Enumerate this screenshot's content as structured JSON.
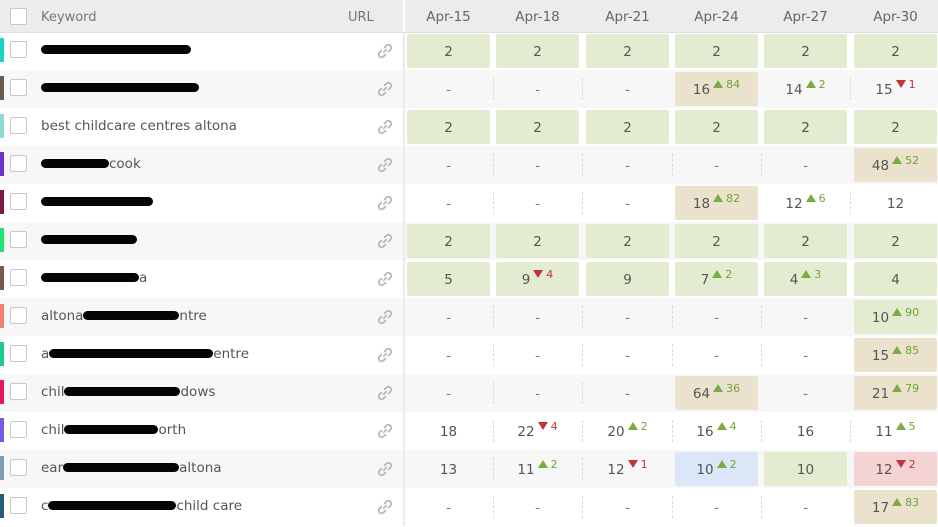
{
  "header": {
    "keyword_label": "Keyword",
    "url_label": "URL",
    "dates": [
      "Apr-15",
      "Apr-18",
      "Apr-21",
      "Apr-24",
      "Apr-27",
      "Apr-30"
    ]
  },
  "rows": [
    {
      "color": "#1ed3c6",
      "parts": [
        {
          "r": 150
        }
      ],
      "icon": "link-icon",
      "cells": [
        {
          "v": "2",
          "bg": "green"
        },
        {
          "v": "2",
          "bg": "green"
        },
        {
          "v": "2",
          "bg": "green"
        },
        {
          "v": "2",
          "bg": "green"
        },
        {
          "v": "2",
          "bg": "green"
        },
        {
          "v": "2",
          "bg": "green"
        }
      ]
    },
    {
      "color": "#6b5a4e",
      "parts": [
        {
          "r": 158
        }
      ],
      "icon": "link-icon",
      "cells": [
        {
          "v": "-"
        },
        {
          "v": "-"
        },
        {
          "v": "-"
        },
        {
          "v": "16",
          "d": "up",
          "c": "84",
          "bg": "tan"
        },
        {
          "v": "14",
          "d": "up",
          "c": "2"
        },
        {
          "v": "15",
          "d": "down",
          "c": "1"
        }
      ]
    },
    {
      "color": "#8fdad6",
      "parts": [
        {
          "t": "best childcare centres altona"
        }
      ],
      "icon": "link-icon",
      "cells": [
        {
          "v": "2",
          "bg": "green"
        },
        {
          "v": "2",
          "bg": "green"
        },
        {
          "v": "2",
          "bg": "green"
        },
        {
          "v": "2",
          "bg": "green"
        },
        {
          "v": "2",
          "bg": "green"
        },
        {
          "v": "2",
          "bg": "green"
        }
      ]
    },
    {
      "color": "#6a32c9",
      "parts": [
        {
          "r": 68
        },
        {
          "t": "cook"
        }
      ],
      "icon": "link-icon",
      "cells": [
        {
          "v": "-"
        },
        {
          "v": "-"
        },
        {
          "v": "-"
        },
        {
          "v": "-"
        },
        {
          "v": "-"
        },
        {
          "v": "48",
          "d": "up",
          "c": "52",
          "bg": "tan"
        }
      ]
    },
    {
      "color": "#7a1a45",
      "parts": [
        {
          "r": 112
        }
      ],
      "icon": "link-icon",
      "cells": [
        {
          "v": "-"
        },
        {
          "v": "-"
        },
        {
          "v": "-"
        },
        {
          "v": "18",
          "d": "up",
          "c": "82",
          "bg": "tan"
        },
        {
          "v": "12",
          "d": "up",
          "c": "6"
        },
        {
          "v": "12"
        }
      ]
    },
    {
      "color": "#1fe377",
      "parts": [
        {
          "r": 96
        }
      ],
      "icon": "link-icon",
      "cells": [
        {
          "v": "2",
          "bg": "green"
        },
        {
          "v": "2",
          "bg": "green"
        },
        {
          "v": "2",
          "bg": "green"
        },
        {
          "v": "2",
          "bg": "green"
        },
        {
          "v": "2",
          "bg": "green"
        },
        {
          "v": "2",
          "bg": "green"
        }
      ]
    },
    {
      "color": "#7a5a4d",
      "parts": [
        {
          "r": 98
        },
        {
          "t": "a"
        }
      ],
      "icon": "link-icon",
      "cells": [
        {
          "v": "5",
          "bg": "green"
        },
        {
          "v": "9",
          "d": "down",
          "c": "4",
          "bg": "green"
        },
        {
          "v": "9",
          "bg": "green"
        },
        {
          "v": "7",
          "d": "up",
          "c": "2",
          "bg": "green"
        },
        {
          "v": "4",
          "d": "up",
          "c": "3",
          "bg": "green"
        },
        {
          "v": "4",
          "bg": "green"
        }
      ]
    },
    {
      "color": "#f0836f",
      "parts": [
        {
          "t": "altona"
        },
        {
          "r": 96
        },
        {
          "t": "ntre"
        }
      ],
      "icon": "link-icon",
      "cells": [
        {
          "v": "-"
        },
        {
          "v": "-"
        },
        {
          "v": "-"
        },
        {
          "v": "-"
        },
        {
          "v": "-"
        },
        {
          "v": "10",
          "d": "up",
          "c": "90",
          "bg": "green"
        }
      ]
    },
    {
      "color": "#1ec98d",
      "parts": [
        {
          "t": "a"
        },
        {
          "r": 164
        },
        {
          "t": "entre"
        }
      ],
      "icon": "link-icon",
      "cells": [
        {
          "v": "-"
        },
        {
          "v": "-"
        },
        {
          "v": "-"
        },
        {
          "v": "-"
        },
        {
          "v": "-"
        },
        {
          "v": "15",
          "d": "up",
          "c": "85",
          "bg": "tan"
        }
      ]
    },
    {
      "color": "#e3175e",
      "parts": [
        {
          "t": "chil"
        },
        {
          "r": 116
        },
        {
          "t": "dows"
        }
      ],
      "icon": "link-icon",
      "cells": [
        {
          "v": "-"
        },
        {
          "v": "-"
        },
        {
          "v": "-"
        },
        {
          "v": "64",
          "d": "up",
          "c": "36",
          "bg": "tan"
        },
        {
          "v": "-"
        },
        {
          "v": "21",
          "d": "up",
          "c": "79",
          "bg": "tan"
        }
      ]
    },
    {
      "color": "#7a5ae0",
      "parts": [
        {
          "t": "chil"
        },
        {
          "r": 94
        },
        {
          "t": "orth"
        }
      ],
      "icon": "link-icon",
      "cells": [
        {
          "v": "18"
        },
        {
          "v": "22",
          "d": "down",
          "c": "4"
        },
        {
          "v": "20",
          "d": "up",
          "c": "2"
        },
        {
          "v": "16",
          "d": "up",
          "c": "4"
        },
        {
          "v": "16"
        },
        {
          "v": "11",
          "d": "up",
          "c": "5"
        }
      ]
    },
    {
      "color": "#7f9bb4",
      "parts": [
        {
          "t": "ear"
        },
        {
          "r": 116
        },
        {
          "t": "altona"
        }
      ],
      "icon": "link-icon",
      "cells": [
        {
          "v": "13"
        },
        {
          "v": "11",
          "d": "up",
          "c": "2"
        },
        {
          "v": "12",
          "d": "down",
          "c": "1"
        },
        {
          "v": "10",
          "d": "up",
          "c": "2",
          "bg": "blue"
        },
        {
          "v": "10",
          "bg": "green"
        },
        {
          "v": "12",
          "d": "down",
          "c": "2",
          "bg": "pink"
        }
      ]
    },
    {
      "color": "#235f7a",
      "parts": [
        {
          "t": "c"
        },
        {
          "r": 128
        },
        {
          "t": "child care"
        }
      ],
      "icon": "link-icon",
      "cells": [
        {
          "v": "-"
        },
        {
          "v": "-"
        },
        {
          "v": "-"
        },
        {
          "v": "-"
        },
        {
          "v": "-"
        },
        {
          "v": "17",
          "d": "up",
          "c": "83",
          "bg": "tan"
        }
      ]
    }
  ]
}
